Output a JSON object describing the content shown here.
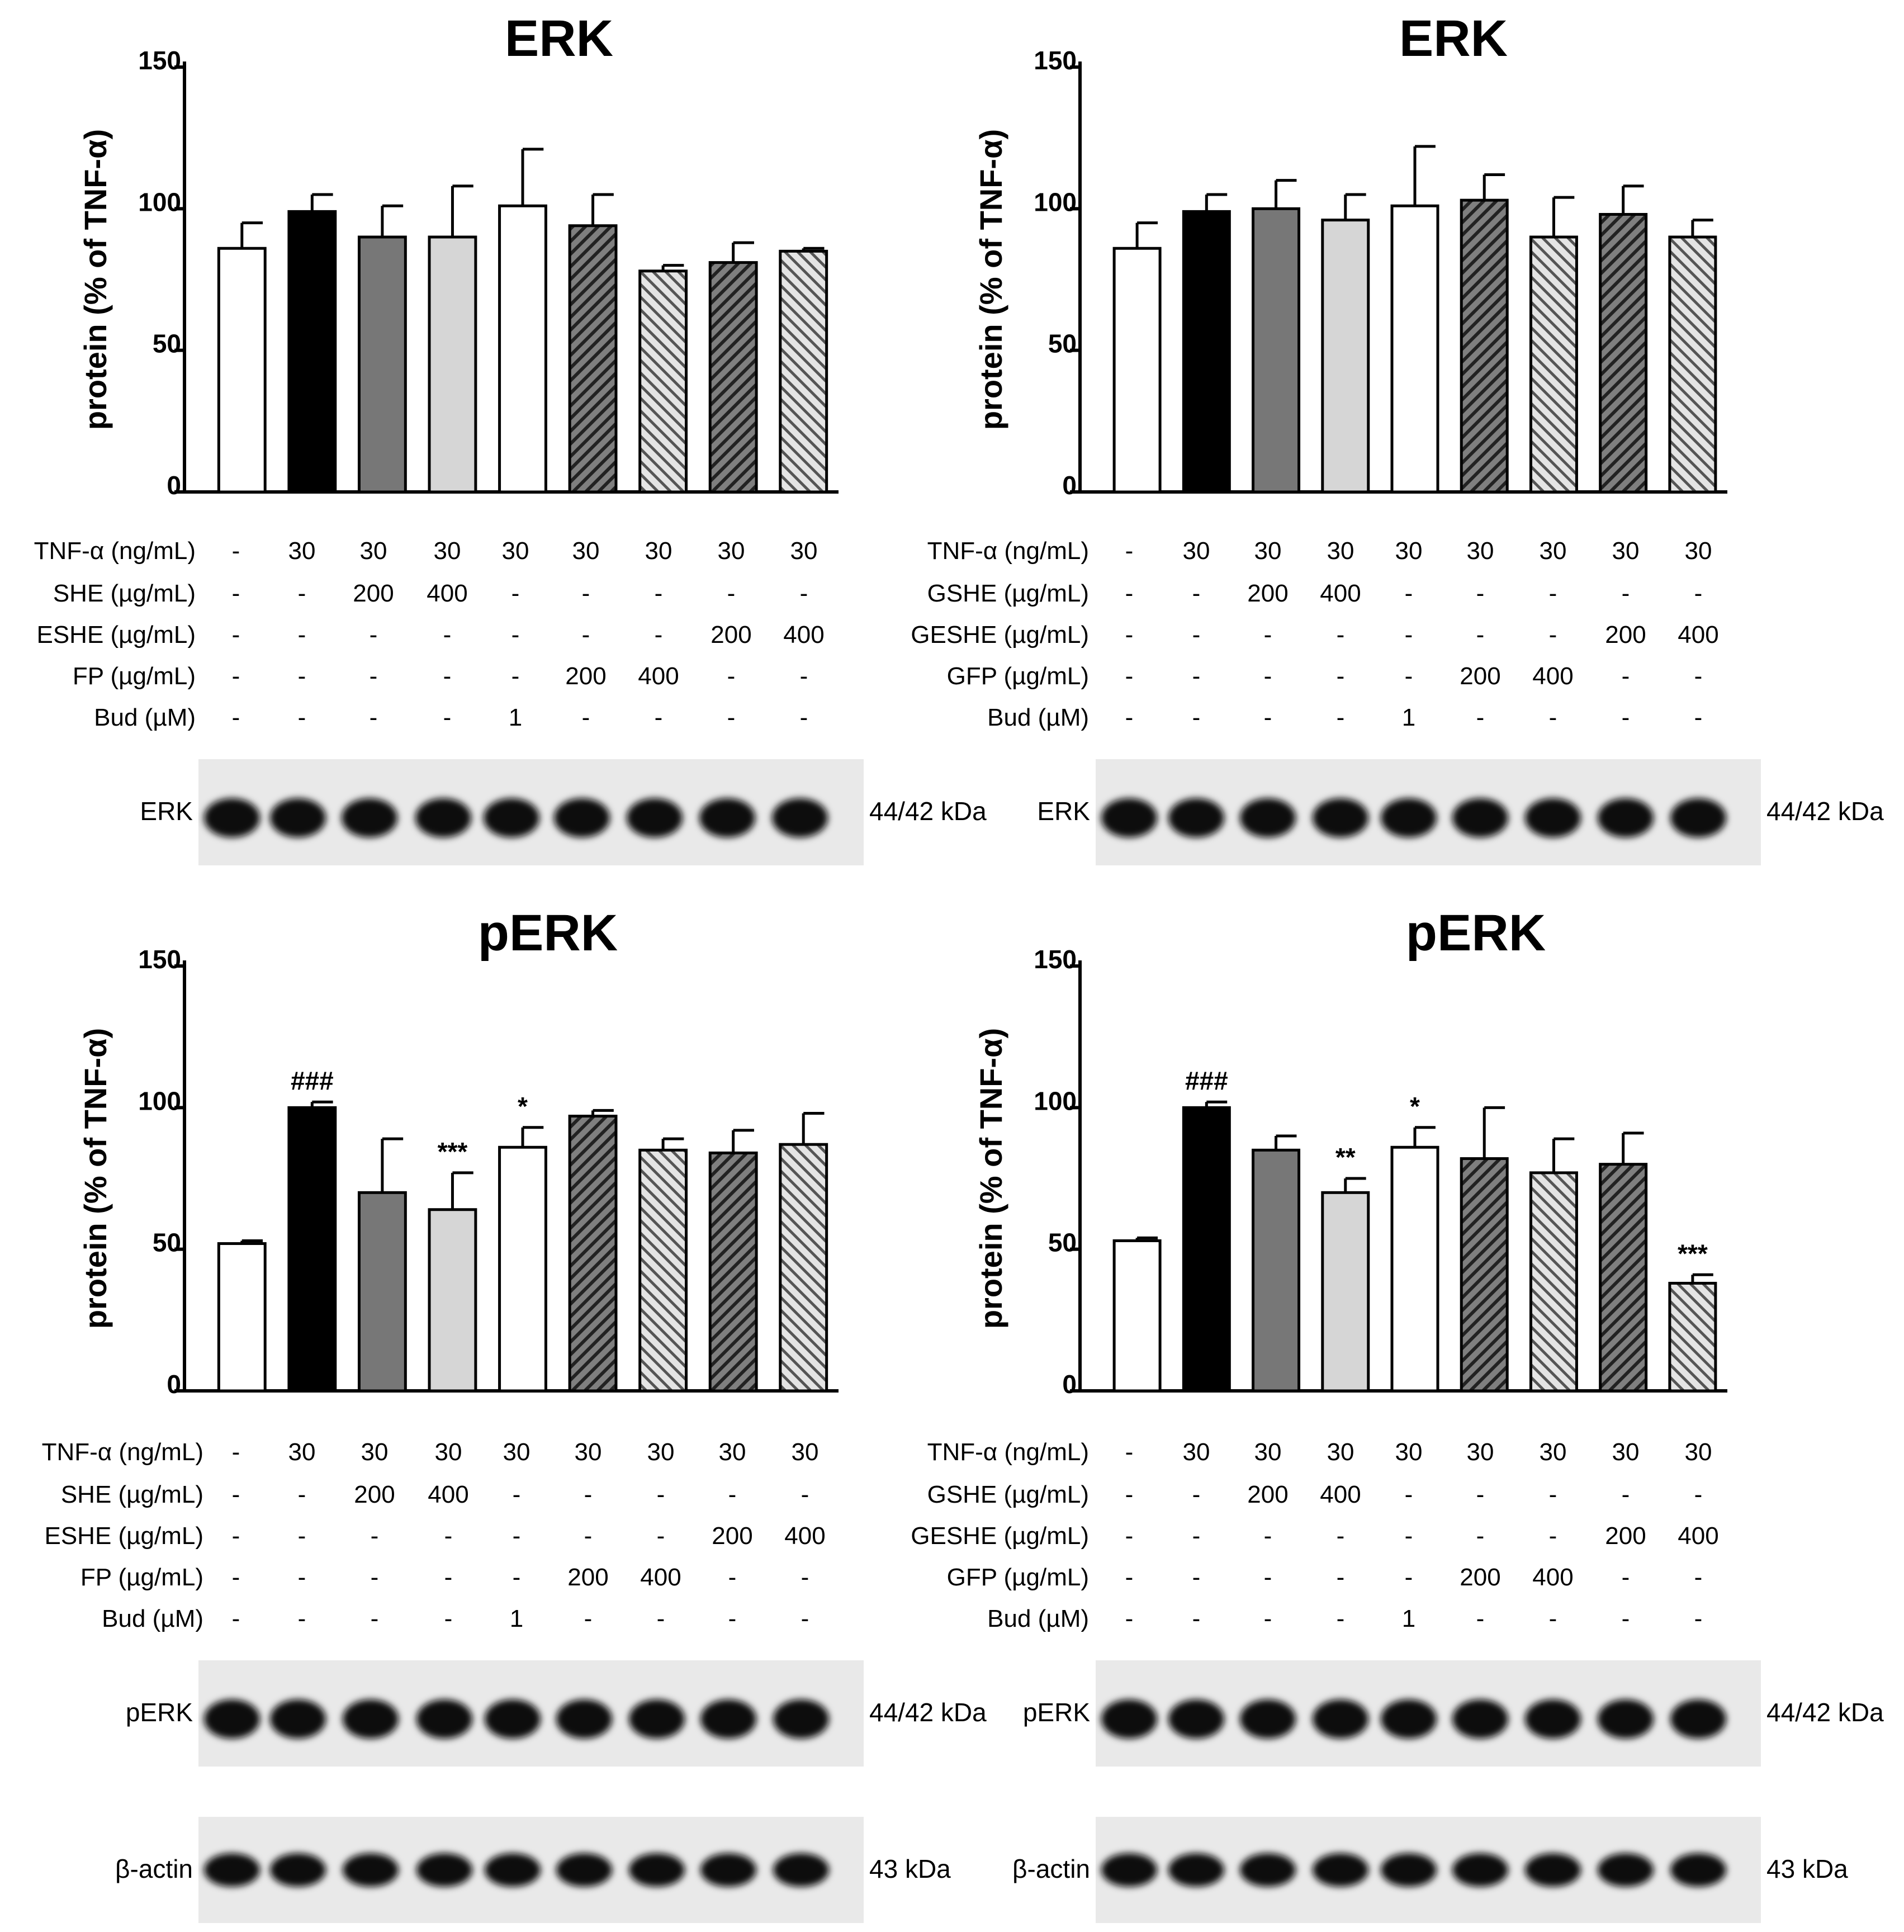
{
  "colors": {
    "black": "#000000",
    "dark_gray": "#777777",
    "light_gray": "#d6d6d6",
    "white": "#ffffff",
    "hatch_dark_bg": "#7f7f7f",
    "hatch_light_bg": "#d9d9d9"
  },
  "panels": [
    {
      "title": "ERK",
      "row_labels": [
        "TNF-α (ng/mL)",
        "SHE (µg/mL)",
        "ESHE (µg/mL)",
        "FP (µg/mL)",
        "Bud (µM)"
      ],
      "blots": [
        {
          "label": "ERK",
          "kda": "44/42 kDa"
        }
      ]
    },
    {
      "title": "ERK",
      "row_labels": [
        "TNF-α (ng/mL)",
        "GSHE (µg/mL)",
        "GESHE (µg/mL)",
        "GFP (µg/mL)",
        "Bud (µM)"
      ],
      "blots": [
        {
          "label": "ERK",
          "kda": "44/42 kDa"
        }
      ]
    },
    {
      "title": "pERK",
      "row_labels": [
        "TNF-α (ng/mL)",
        "SHE (µg/mL)",
        "ESHE (µg/mL)",
        "FP (µg/mL)",
        "Bud (µM)"
      ],
      "blots": [
        {
          "label": "pERK",
          "kda": "44/42 kDa"
        },
        {
          "label": "β-actin",
          "kda": "43 kDa"
        }
      ]
    },
    {
      "title": "pERK",
      "row_labels": [
        "TNF-α (ng/mL)",
        "GSHE (µg/mL)",
        "GESHE (µg/mL)",
        "GFP (µg/mL)",
        "Bud (µM)"
      ],
      "blots": [
        {
          "label": "pERK",
          "kda": "44/42 kDa"
        },
        {
          "label": "β-actin",
          "kda": "43 kDa"
        }
      ]
    }
  ],
  "chart_data": [
    {
      "type": "bar",
      "title": "ERK",
      "ylabel": "protein (% of TNF-α)",
      "ylim": [
        0,
        150
      ],
      "yticks": [
        "0",
        "50",
        "100",
        "150"
      ],
      "values": [
        86,
        99,
        90,
        90,
        101,
        94,
        78,
        81,
        85
      ],
      "errors": [
        9,
        6,
        11,
        18,
        20,
        11,
        2,
        7,
        1
      ],
      "annotations": [
        "",
        "",
        "",
        "",
        "",
        "",
        "",
        "",
        ""
      ],
      "conditions": [
        [
          "-",
          "30",
          "30",
          "30",
          "30",
          "30",
          "30",
          "30",
          "30"
        ],
        [
          "-",
          "-",
          "200",
          "400",
          "-",
          "-",
          "-",
          "-",
          "-"
        ],
        [
          "-",
          "-",
          "-",
          "-",
          "-",
          "-",
          "-",
          "200",
          "400"
        ],
        [
          "-",
          "-",
          "-",
          "-",
          "-",
          "200",
          "400",
          "-",
          "-"
        ],
        [
          "-",
          "-",
          "-",
          "-",
          "1",
          "-",
          "-",
          "-",
          "-"
        ]
      ]
    },
    {
      "type": "bar",
      "title": "ERK",
      "ylabel": "protein (% of TNF-α)",
      "ylim": [
        0,
        150
      ],
      "yticks": [
        "0",
        "50",
        "100",
        "150"
      ],
      "values": [
        86,
        99,
        100,
        96,
        101,
        103,
        90,
        98,
        90
      ],
      "errors": [
        9,
        6,
        10,
        9,
        21,
        9,
        14,
        10,
        6
      ],
      "annotations": [
        "",
        "",
        "",
        "",
        "",
        "",
        "",
        "",
        ""
      ],
      "conditions": [
        [
          "-",
          "30",
          "30",
          "30",
          "30",
          "30",
          "30",
          "30",
          "30"
        ],
        [
          "-",
          "-",
          "200",
          "400",
          "-",
          "-",
          "-",
          "-",
          "-"
        ],
        [
          "-",
          "-",
          "-",
          "-",
          "-",
          "-",
          "-",
          "200",
          "400"
        ],
        [
          "-",
          "-",
          "-",
          "-",
          "-",
          "200",
          "400",
          "-",
          "-"
        ],
        [
          "-",
          "-",
          "-",
          "-",
          "1",
          "-",
          "-",
          "-",
          "-"
        ]
      ]
    },
    {
      "type": "bar",
      "title": "pERK",
      "ylabel": "protein (% of TNF-α)",
      "ylim": [
        0,
        150
      ],
      "yticks": [
        "0",
        "50",
        "100",
        "150"
      ],
      "values": [
        52,
        100,
        70,
        64,
        86,
        97,
        85,
        84,
        87
      ],
      "errors": [
        1,
        2,
        19,
        13,
        7,
        2,
        4,
        8,
        11
      ],
      "annotations": [
        "",
        "###",
        "",
        "***",
        "*",
        "",
        "",
        "",
        ""
      ],
      "conditions": [
        [
          "-",
          "30",
          "30",
          "30",
          "30",
          "30",
          "30",
          "30",
          "30"
        ],
        [
          "-",
          "-",
          "200",
          "400",
          "-",
          "-",
          "-",
          "-",
          "-"
        ],
        [
          "-",
          "-",
          "-",
          "-",
          "-",
          "-",
          "-",
          "200",
          "400"
        ],
        [
          "-",
          "-",
          "-",
          "-",
          "-",
          "200",
          "400",
          "-",
          "-"
        ],
        [
          "-",
          "-",
          "-",
          "-",
          "1",
          "-",
          "-",
          "-",
          "-"
        ]
      ]
    },
    {
      "type": "bar",
      "title": "pERK",
      "ylabel": "protein (% of TNF-α)",
      "ylim": [
        0,
        150
      ],
      "yticks": [
        "0",
        "50",
        "100",
        "150"
      ],
      "values": [
        53,
        100,
        85,
        70,
        86,
        82,
        77,
        80,
        38
      ],
      "errors": [
        1,
        2,
        5,
        5,
        7,
        18,
        12,
        11,
        3
      ],
      "annotations": [
        "",
        "###",
        "",
        "**",
        "*",
        "",
        "",
        "",
        "***"
      ],
      "conditions": [
        [
          "-",
          "30",
          "30",
          "30",
          "30",
          "30",
          "30",
          "30",
          "30"
        ],
        [
          "-",
          "-",
          "200",
          "400",
          "-",
          "-",
          "-",
          "-",
          "-"
        ],
        [
          "-",
          "-",
          "-",
          "-",
          "-",
          "-",
          "-",
          "200",
          "400"
        ],
        [
          "-",
          "-",
          "-",
          "-",
          "-",
          "200",
          "400",
          "-",
          "-"
        ],
        [
          "-",
          "-",
          "-",
          "-",
          "1",
          "-",
          "-",
          "-",
          "-"
        ]
      ]
    }
  ]
}
